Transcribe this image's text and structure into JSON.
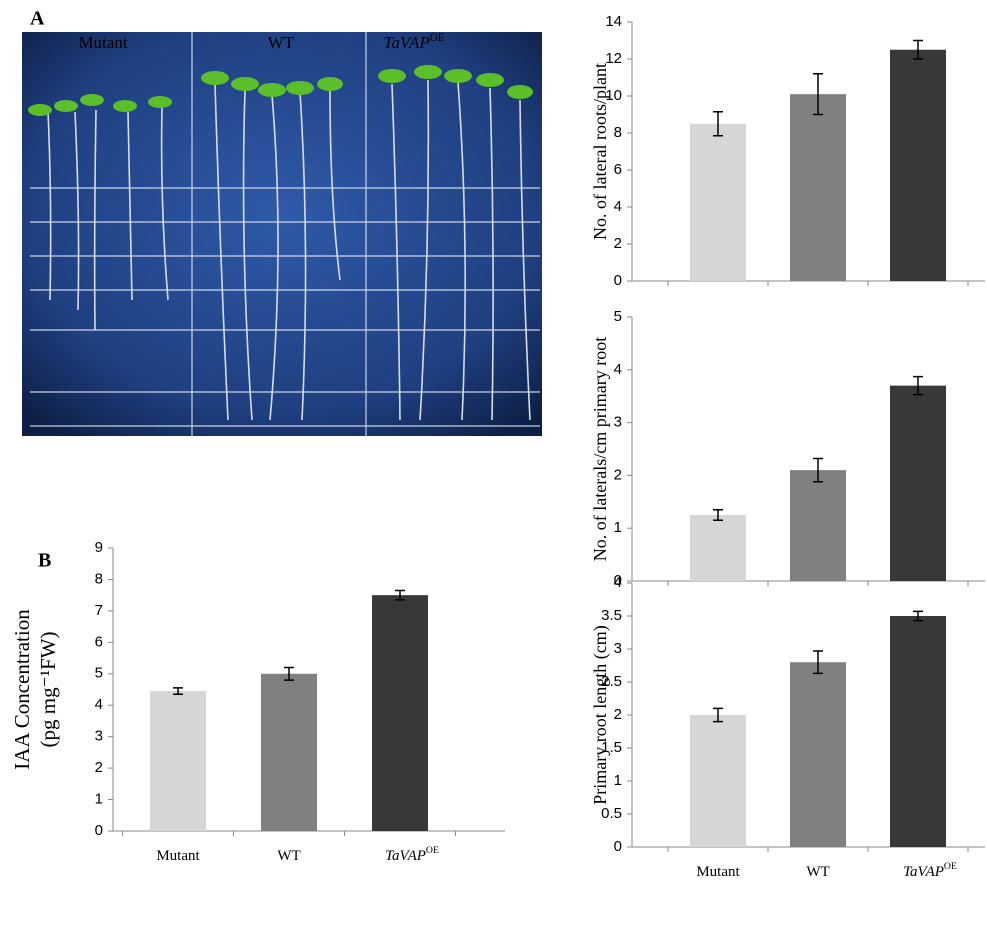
{
  "panel_a": {
    "label": "A",
    "photo_labels": [
      "Mutant",
      "WT",
      "TaVAP"
    ],
    "photo_label_sup": [
      null,
      null,
      "OE"
    ]
  },
  "panel_b": {
    "label": "B"
  },
  "chart_data": [
    {
      "type": "bar",
      "ylabel": [
        "No. of lateral roots/plant"
      ],
      "categories": [
        null,
        null,
        null
      ],
      "values": [
        8.5,
        10.1,
        12.5
      ],
      "errors": [
        0.65,
        1.1,
        0.5
      ],
      "colors": [
        "#d6d6d6",
        "#808080",
        "#383838"
      ],
      "ylim": [
        0,
        14
      ],
      "yticks": [
        0,
        2,
        4,
        6,
        8,
        10,
        12,
        14
      ]
    },
    {
      "type": "bar",
      "ylabel": [
        "No. of laterals/cm primary root"
      ],
      "categories": [
        null,
        null,
        null
      ],
      "values": [
        1.25,
        2.1,
        3.7
      ],
      "errors": [
        0.1,
        0.22,
        0.17
      ],
      "colors": [
        "#d6d6d6",
        "#808080",
        "#383838"
      ],
      "ylim": [
        0,
        5
      ],
      "yticks": [
        0,
        1,
        2,
        3,
        4,
        5
      ]
    },
    {
      "type": "bar",
      "ylabel": [
        "Primary root length (cm)"
      ],
      "categories": [
        "Mutant",
        "WT",
        "TaVAP"
      ],
      "category_sup": [
        null,
        null,
        "OE"
      ],
      "values": [
        2.0,
        2.8,
        3.5
      ],
      "errors": [
        0.1,
        0.17,
        0.07
      ],
      "colors": [
        "#d6d6d6",
        "#808080",
        "#383838"
      ],
      "ylim": [
        0,
        4
      ],
      "yticks": [
        0,
        0.5,
        1,
        1.5,
        2,
        2.5,
        3,
        3.5,
        4
      ]
    },
    {
      "type": "bar",
      "ylabel": [
        "IAA Concentration",
        "(pg mg⁻¹FW)"
      ],
      "categories": [
        "Mutant",
        "WT",
        "TaVAP"
      ],
      "category_sup": [
        null,
        null,
        "OE"
      ],
      "values": [
        4.45,
        5.0,
        7.5
      ],
      "errors": [
        0.1,
        0.2,
        0.15
      ],
      "colors": [
        "#d6d6d6",
        "#808080",
        "#383838"
      ],
      "ylim": [
        0,
        9
      ],
      "yticks": [
        0,
        1,
        2,
        3,
        4,
        5,
        6,
        7,
        8,
        9
      ]
    }
  ]
}
